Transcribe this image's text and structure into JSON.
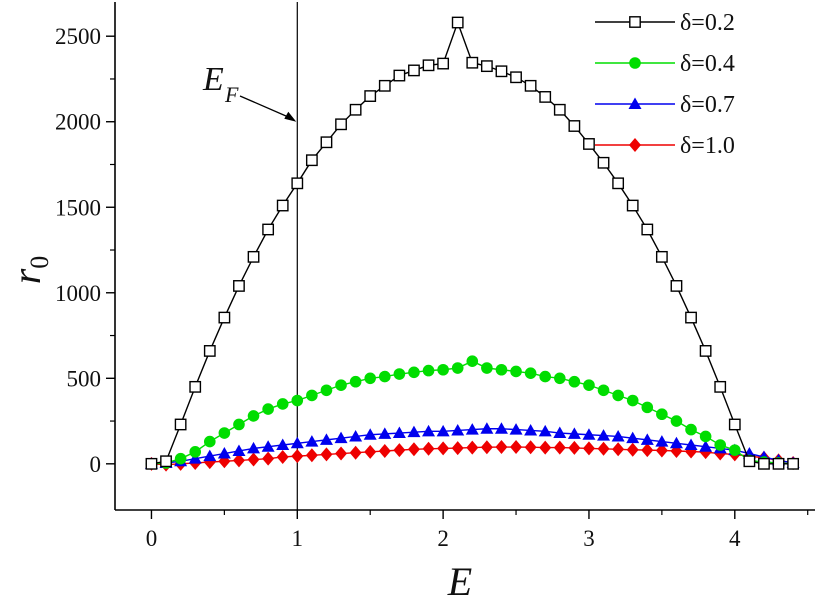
{
  "chart_data": {
    "type": "line",
    "title": "",
    "xlabel": "E",
    "ylabel": "r",
    "ylabel_sub": "0",
    "xlim": [
      -0.25,
      4.55
    ],
    "ylim": [
      -270,
      2700
    ],
    "xticks": [
      0,
      1,
      2,
      3,
      4
    ],
    "xtick_labels": [
      "0",
      "1",
      "2",
      "3",
      "4"
    ],
    "yticks": [
      0,
      500,
      1000,
      1500,
      2000,
      2500
    ],
    "ytick_labels": [
      "0",
      "500",
      "1000",
      "1500",
      "2000",
      "2500"
    ],
    "grid": false,
    "legend_position": "top-right",
    "x": [
      0.0,
      0.1,
      0.2,
      0.3,
      0.4,
      0.5,
      0.6,
      0.7,
      0.8,
      0.9,
      1.0,
      1.1,
      1.2,
      1.3,
      1.4,
      1.5,
      1.6,
      1.7,
      1.8,
      1.9,
      2.0,
      2.1,
      2.2,
      2.3,
      2.4,
      2.5,
      2.6,
      2.7,
      2.8,
      2.9,
      3.0,
      3.1,
      3.2,
      3.3,
      3.4,
      3.5,
      3.6,
      3.7,
      3.8,
      3.9,
      4.0,
      4.1,
      4.2,
      4.3,
      4.4
    ],
    "series": [
      {
        "name": "δ=0.2",
        "color": "#000000",
        "marker": "open-square",
        "values": [
          0,
          15,
          230,
          450,
          660,
          855,
          1040,
          1210,
          1370,
          1510,
          1640,
          1775,
          1880,
          1985,
          2070,
          2150,
          2210,
          2270,
          2300,
          2330,
          2340,
          2580,
          2345,
          2325,
          2295,
          2260,
          2210,
          2145,
          2070,
          1975,
          1870,
          1760,
          1640,
          1510,
          1370,
          1210,
          1040,
          855,
          660,
          450,
          230,
          15,
          0,
          0,
          0
        ]
      },
      {
        "name": "δ=0.4",
        "color": "#00dd00",
        "marker": "filled-circle",
        "values": [
          0,
          5,
          30,
          70,
          130,
          180,
          230,
          280,
          320,
          350,
          370,
          400,
          430,
          460,
          480,
          500,
          510,
          525,
          535,
          545,
          550,
          560,
          600,
          560,
          550,
          540,
          530,
          510,
          500,
          480,
          460,
          430,
          400,
          370,
          330,
          290,
          250,
          200,
          160,
          110,
          80,
          20,
          10,
          5,
          0
        ]
      },
      {
        "name": "δ=0.7",
        "color": "#0000ee",
        "marker": "filled-triangle",
        "values": [
          0,
          5,
          15,
          30,
          45,
          60,
          75,
          90,
          100,
          110,
          120,
          130,
          140,
          150,
          160,
          170,
          175,
          180,
          185,
          190,
          190,
          195,
          200,
          205,
          205,
          200,
          195,
          190,
          180,
          175,
          170,
          165,
          160,
          150,
          140,
          130,
          120,
          110,
          100,
          90,
          80,
          60,
          40,
          20,
          5
        ]
      },
      {
        "name": "δ=1.0",
        "color": "#ee0000",
        "marker": "filled-diamond",
        "values": [
          0,
          -5,
          0,
          5,
          10,
          15,
          20,
          25,
          30,
          40,
          45,
          50,
          55,
          60,
          65,
          70,
          75,
          80,
          85,
          88,
          90,
          92,
          95,
          97,
          98,
          98,
          97,
          95,
          95,
          93,
          90,
          88,
          85,
          82,
          80,
          78,
          75,
          72,
          68,
          60,
          55,
          45,
          35,
          20,
          5
        ]
      }
    ],
    "annotations": [
      {
        "text": "E",
        "sub": "F",
        "target_x": 1.0,
        "target_y": 2000
      }
    ],
    "vertical_lines": [
      1.0
    ]
  }
}
